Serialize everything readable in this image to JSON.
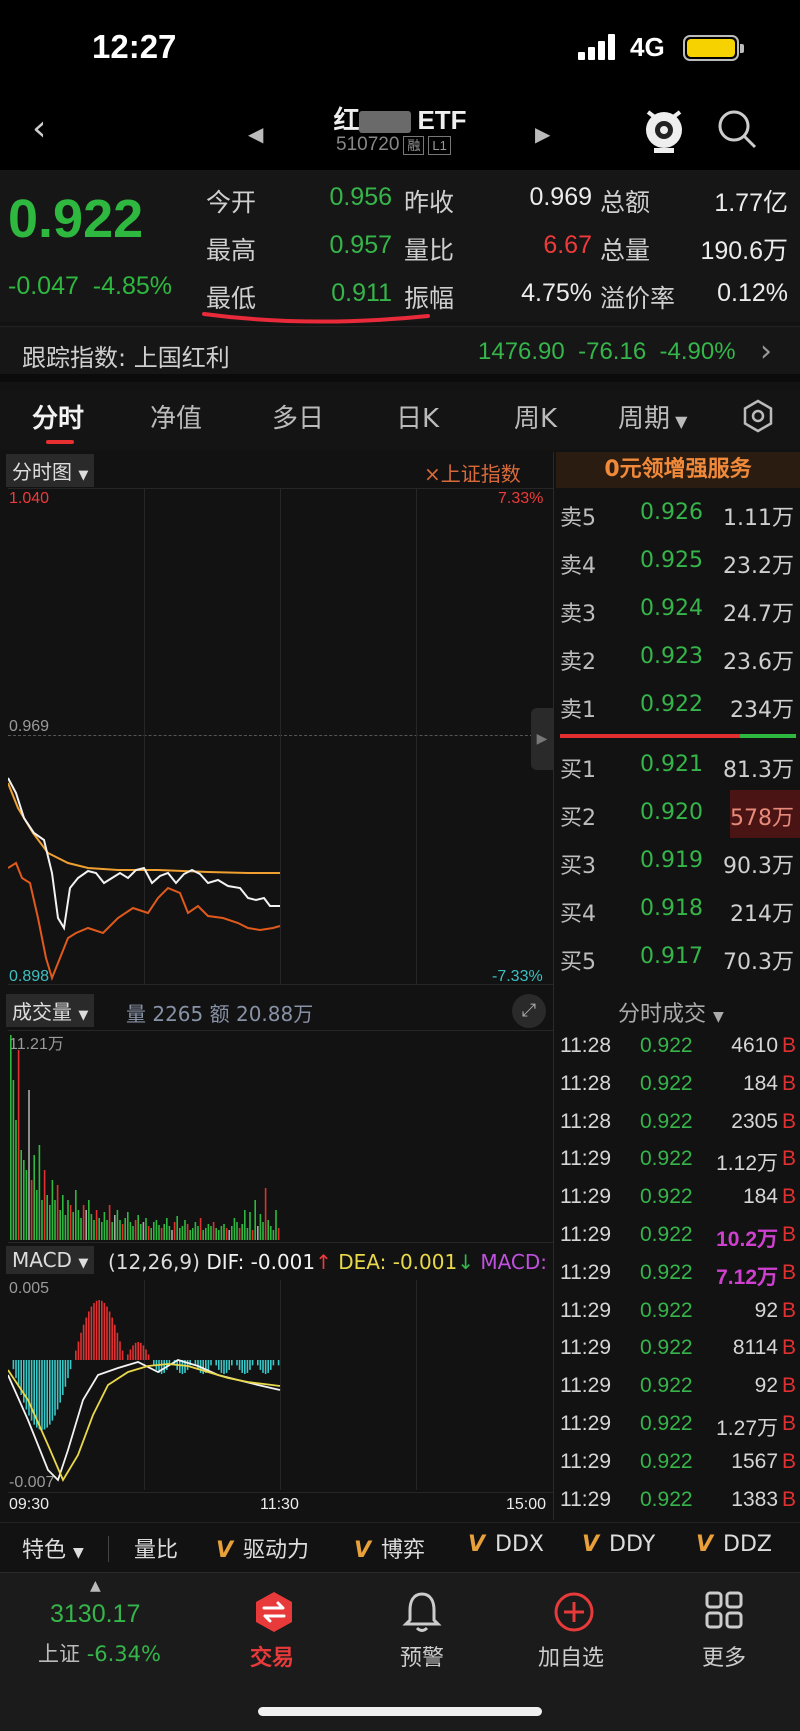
{
  "status": {
    "time": "12:27",
    "network": "4G"
  },
  "nav": {
    "title_prefix": "红",
    "title_suffix": "ETF",
    "code": "510720",
    "tag_margin": "融",
    "tag_level": "L1"
  },
  "quote": {
    "price": "0.922",
    "change": "-0.047",
    "change_pct": "-4.85%",
    "rows": [
      {
        "l1": "今开",
        "v1": "0.956",
        "l2": "昨收",
        "v2": "0.969",
        "l3": "总额",
        "v3": "1.77亿"
      },
      {
        "l1": "最高",
        "v1": "0.957",
        "l2": "量比",
        "v2": "6.67",
        "l3": "总量",
        "v3": "190.6万"
      },
      {
        "l1": "最低",
        "v1": "0.911",
        "l2": "振幅",
        "v2": "4.75%",
        "l3": "溢价率",
        "v3": "0.12%"
      }
    ]
  },
  "tracking": {
    "label": "跟踪指数: 上国红利",
    "value": "1476.90",
    "change": "-76.16",
    "change_pct": "-4.90%"
  },
  "tabs": [
    "分时",
    "净值",
    "多日",
    "日K",
    "周K",
    "周期"
  ],
  "chart": {
    "selector": "分时图",
    "overlay": "×上证指数",
    "top_price": "1.040",
    "top_pct": "7.33%",
    "mid_price": "0.969",
    "bottom_price": "0.898",
    "bottom_pct": "-7.33%",
    "promo": "0元领增强服务",
    "volume_selector": "成交量",
    "volume_info": "量 2265  额 20.88万",
    "volume_max": "11.21万",
    "macd_selector": "MACD",
    "macd_params": "(12,26,9)",
    "dif": "DIF: -0.001",
    "dea": "DEA: -0.001",
    "macd_label": "MACD:",
    "macd_top": "0.005",
    "macd_bottom": "-0.007",
    "time_start": "09:30",
    "time_mid": "11:30",
    "time_end": "15:00",
    "colors": {
      "price_line": "#ffffff",
      "avg_line": "#f0a030",
      "index_line": "#e05a1c",
      "up": "#e23030",
      "down": "#2eb83f",
      "macd_neg": "#38c8c8"
    }
  },
  "orderbook": {
    "asks": [
      {
        "label": "卖5",
        "price": "0.926",
        "vol": "1.11万"
      },
      {
        "label": "卖4",
        "price": "0.925",
        "vol": "23.2万"
      },
      {
        "label": "卖3",
        "price": "0.924",
        "vol": "24.7万"
      },
      {
        "label": "卖2",
        "price": "0.923",
        "vol": "23.6万"
      },
      {
        "label": "卖1",
        "price": "0.922",
        "vol": "234万"
      }
    ],
    "bids": [
      {
        "label": "买1",
        "price": "0.921",
        "vol": "81.3万"
      },
      {
        "label": "买2",
        "price": "0.920",
        "vol": "578万"
      },
      {
        "label": "买3",
        "price": "0.919",
        "vol": "90.3万"
      },
      {
        "label": "买4",
        "price": "0.918",
        "vol": "214万"
      },
      {
        "label": "买5",
        "price": "0.917",
        "vol": "70.3万"
      }
    ]
  },
  "trades": {
    "title": "分时成交",
    "rows": [
      {
        "t": "11:28",
        "p": "0.922",
        "v": "4610B",
        "hl": ""
      },
      {
        "t": "11:28",
        "p": "0.922",
        "v": "184B",
        "hl": ""
      },
      {
        "t": "11:28",
        "p": "0.922",
        "v": "2305B",
        "hl": ""
      },
      {
        "t": "11:29",
        "p": "0.922",
        "v": "1.12万B",
        "hl": ""
      },
      {
        "t": "11:29",
        "p": "0.922",
        "v": "184B",
        "hl": ""
      },
      {
        "t": "11:29",
        "p": "0.922",
        "v": "10.2万B",
        "hl": "magenta"
      },
      {
        "t": "11:29",
        "p": "0.922",
        "v": "7.12万B",
        "hl": "magenta"
      },
      {
        "t": "11:29",
        "p": "0.922",
        "v": "92B",
        "hl": ""
      },
      {
        "t": "11:29",
        "p": "0.922",
        "v": "8114B",
        "hl": ""
      },
      {
        "t": "11:29",
        "p": "0.922",
        "v": "92B",
        "hl": ""
      },
      {
        "t": "11:29",
        "p": "0.922",
        "v": "1.27万B",
        "hl": ""
      },
      {
        "t": "11:29",
        "p": "0.922",
        "v": "1567B",
        "hl": ""
      },
      {
        "t": "11:29",
        "p": "0.922",
        "v": "1383B",
        "hl": ""
      }
    ]
  },
  "bottom_tabs": [
    "特色",
    "量比",
    "驱动力",
    "博弈",
    "DDX",
    "DDY",
    "DDZ"
  ],
  "bottom_mark": "V",
  "dock": {
    "index_value": "3130.17",
    "index_label": "上证",
    "index_pct": "-6.34%",
    "trade": "交易",
    "alert": "预警",
    "add": "加自选",
    "more": "更多"
  }
}
